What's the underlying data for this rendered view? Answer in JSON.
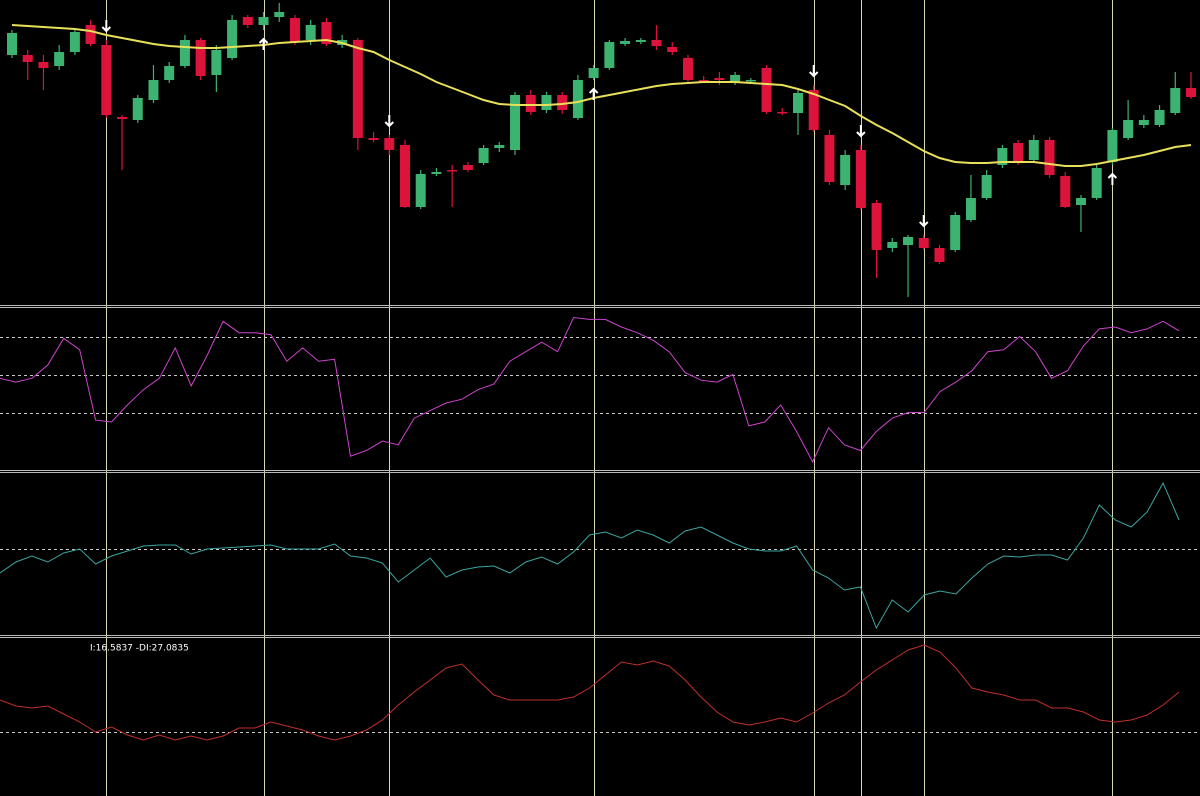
{
  "chart_data": {
    "type": "candlestick",
    "up_color": "#3cb371",
    "down_color": "#dc143c",
    "ylim": [
      0,
      300
    ],
    "ohlc": [
      [
        245,
        270,
        242,
        267
      ],
      [
        245,
        250,
        220,
        238
      ],
      [
        238,
        245,
        210,
        232
      ],
      [
        234,
        255,
        230,
        248
      ],
      [
        248,
        272,
        245,
        268
      ],
      [
        275,
        280,
        254,
        256
      ],
      [
        255,
        260,
        182,
        185
      ],
      [
        183,
        185,
        130,
        181
      ],
      [
        180,
        205,
        177,
        202
      ],
      [
        200,
        235,
        197,
        220
      ],
      [
        220,
        238,
        217,
        234
      ],
      [
        234,
        265,
        232,
        260
      ],
      [
        260,
        262,
        220,
        224
      ],
      [
        225,
        255,
        208,
        250
      ],
      [
        242,
        285,
        240,
        280
      ],
      [
        283,
        285,
        272,
        275
      ],
      [
        275,
        288,
        270,
        283
      ],
      [
        283,
        297,
        278,
        288
      ],
      [
        282,
        285,
        255,
        258
      ],
      [
        260,
        280,
        255,
        275
      ],
      [
        278,
        282,
        254,
        256
      ],
      [
        255,
        265,
        252,
        260
      ],
      [
        260,
        262,
        150,
        162
      ],
      [
        162,
        168,
        158,
        160
      ],
      [
        162,
        165,
        145,
        150
      ],
      [
        155,
        160,
        92,
        93
      ],
      [
        93,
        130,
        91,
        126
      ],
      [
        126,
        132,
        124,
        128
      ],
      [
        130,
        135,
        93,
        129
      ],
      [
        135,
        138,
        128,
        130
      ],
      [
        137,
        155,
        135,
        152
      ],
      [
        152,
        158,
        148,
        155
      ],
      [
        150,
        208,
        145,
        205
      ],
      [
        205,
        210,
        185,
        188
      ],
      [
        190,
        208,
        187,
        205
      ],
      [
        205,
        208,
        186,
        190
      ],
      [
        182,
        225,
        180,
        220
      ],
      [
        222,
        235,
        220,
        232
      ],
      [
        232,
        260,
        230,
        258
      ],
      [
        256,
        262,
        254,
        259
      ],
      [
        258,
        262,
        256,
        260
      ],
      [
        260,
        275,
        250,
        254
      ],
      [
        253,
        258,
        245,
        248
      ],
      [
        242,
        245,
        218,
        220
      ],
      [
        220,
        224,
        217,
        219
      ],
      [
        222,
        228,
        215,
        220
      ],
      [
        218,
        228,
        215,
        225
      ],
      [
        220,
        222,
        218,
        220
      ],
      [
        232,
        235,
        186,
        188
      ],
      [
        188,
        192,
        185,
        187
      ],
      [
        187,
        210,
        165,
        207
      ],
      [
        210,
        215,
        168,
        170
      ],
      [
        165,
        170,
        115,
        118
      ],
      [
        115,
        150,
        110,
        145
      ],
      [
        150,
        155,
        90,
        92
      ],
      [
        97,
        100,
        22,
        50
      ],
      [
        52,
        62,
        48,
        58
      ],
      [
        55,
        65,
        3,
        63
      ],
      [
        62,
        65,
        50,
        52
      ],
      [
        52,
        55,
        36,
        38
      ],
      [
        50,
        88,
        48,
        85
      ],
      [
        80,
        125,
        78,
        102
      ],
      [
        102,
        130,
        100,
        125
      ],
      [
        135,
        155,
        132,
        152
      ],
      [
        157,
        160,
        135,
        137
      ],
      [
        140,
        165,
        138,
        160
      ],
      [
        160,
        163,
        122,
        125
      ],
      [
        124,
        128,
        92,
        93
      ],
      [
        95,
        105,
        68,
        102
      ],
      [
        102,
        135,
        100,
        132
      ],
      [
        138,
        172,
        135,
        170
      ],
      [
        162,
        200,
        160,
        180
      ],
      [
        175,
        185,
        172,
        180
      ],
      [
        175,
        195,
        173,
        190
      ],
      [
        187,
        228,
        185,
        212
      ],
      [
        212,
        228,
        201,
        203
      ]
    ],
    "ma": {
      "color": "#e8e05a",
      "values": [
        275,
        274,
        273,
        272,
        271,
        269,
        265,
        262,
        259,
        256,
        254,
        253,
        252,
        252,
        253,
        254,
        255,
        257,
        258,
        259,
        260,
        257,
        252,
        248,
        240,
        233,
        226,
        218,
        212,
        206,
        200,
        196,
        195,
        195,
        195,
        196,
        198,
        202,
        205,
        208,
        211,
        214,
        216,
        217,
        218,
        218,
        218,
        217,
        216,
        215,
        211,
        206,
        200,
        194,
        184,
        175,
        167,
        158,
        149,
        142,
        138,
        137,
        137,
        138,
        138,
        138,
        136,
        134,
        134,
        136,
        139,
        142,
        145,
        149,
        153,
        155
      ]
    },
    "arrows_down": [
      6,
      24,
      51,
      54,
      58
    ],
    "arrows_up": [
      16,
      37,
      70
    ],
    "signal_color": "#d8d8b0",
    "indicators": [
      {
        "type": "line",
        "color": "#cc44cc",
        "ylim": [
          0,
          85
        ],
        "levels": [
          30,
          50,
          70
        ],
        "values": [
          48,
          46,
          48,
          55,
          69,
          63,
          26,
          25,
          34,
          42,
          48,
          64,
          44,
          60,
          78,
          72,
          72,
          71,
          57,
          64,
          57,
          58,
          7,
          10,
          15,
          13,
          27,
          31,
          35,
          37,
          42,
          45,
          57,
          62,
          67,
          62,
          80,
          79,
          79,
          75,
          72,
          68,
          62,
          51,
          47,
          46,
          50,
          23,
          25,
          34,
          20,
          4,
          22,
          13,
          10,
          20,
          27,
          30,
          30,
          41,
          46,
          52,
          62,
          63,
          70,
          62,
          48,
          52,
          65,
          74,
          75,
          72,
          74,
          78,
          73
        ]
      },
      {
        "type": "line",
        "color": "#3aa6a0",
        "ylim": [
          -43,
          38
        ],
        "levels": [
          0
        ],
        "values": [
          -12,
          -6.5,
          -3.5,
          -6.5,
          -2,
          0,
          -7.5,
          -3.5,
          -1,
          1.5,
          2,
          2,
          -2.5,
          0,
          0.5,
          1,
          1.5,
          2,
          0,
          0,
          0,
          2.5,
          -3.5,
          -4.5,
          -7,
          -16.5,
          -10.5,
          -4.5,
          -14,
          -10.5,
          -9,
          -8.5,
          -12,
          -6.5,
          -4,
          -7.5,
          -1.5,
          7,
          8.5,
          5.5,
          9.5,
          7,
          3,
          9,
          11,
          7,
          3,
          0,
          -1,
          -1,
          1.5,
          -10.5,
          -14.5,
          -20.5,
          -19,
          -39.5,
          -25.5,
          -31.5,
          -23,
          -21,
          -22.5,
          -14.5,
          -7.5,
          -3.5,
          -4,
          -3,
          -3,
          -5.5,
          5.5,
          22,
          14.5,
          11,
          18.5,
          33,
          14.5
        ]
      },
      {
        "type": "line",
        "color": "#c0302c",
        "ylim": [
          4,
          43.5
        ],
        "levels": [
          20
        ],
        "legend_text": "I:16.5837 -DI:27.0835",
        "values": [
          28,
          26.5,
          26,
          26.5,
          24.5,
          22.5,
          20,
          21.25,
          19.25,
          18,
          19.25,
          18,
          19,
          18,
          19,
          21,
          21,
          22.5,
          21.5,
          20.5,
          19,
          18,
          19,
          20.5,
          23,
          26.75,
          30,
          33,
          36,
          37,
          33,
          29.25,
          28,
          28,
          28,
          28,
          28.75,
          31,
          34.25,
          37.5,
          36.75,
          37.75,
          36.5,
          33,
          28.75,
          25,
          22.5,
          21.75,
          22.5,
          23.5,
          22.5,
          24.75,
          27.25,
          29.25,
          32.5,
          35.5,
          38,
          40.5,
          41.75,
          40,
          36,
          31,
          30,
          29.25,
          28,
          28,
          26,
          26,
          25,
          23,
          22.5,
          23,
          24.25,
          26.75,
          30
        ]
      }
    ]
  }
}
